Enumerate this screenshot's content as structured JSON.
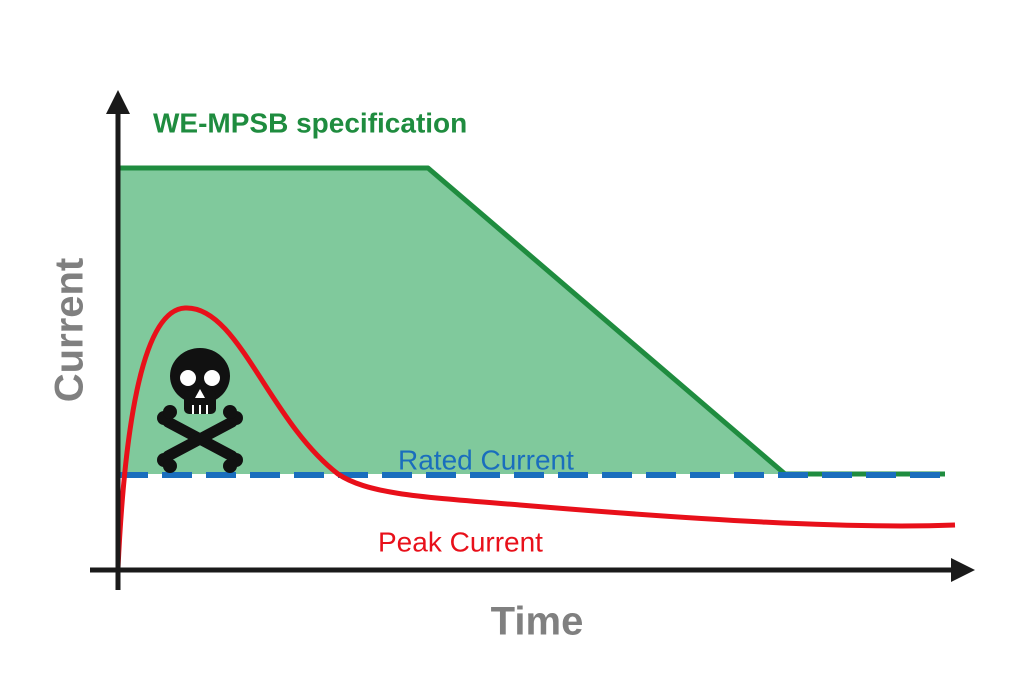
{
  "diagram": {
    "spec_label": "WE-MPSB specification",
    "rated_label": "Rated Current",
    "peak_label": "Peak Current",
    "y_axis_label": "Current",
    "x_axis_label": "Time"
  }
}
